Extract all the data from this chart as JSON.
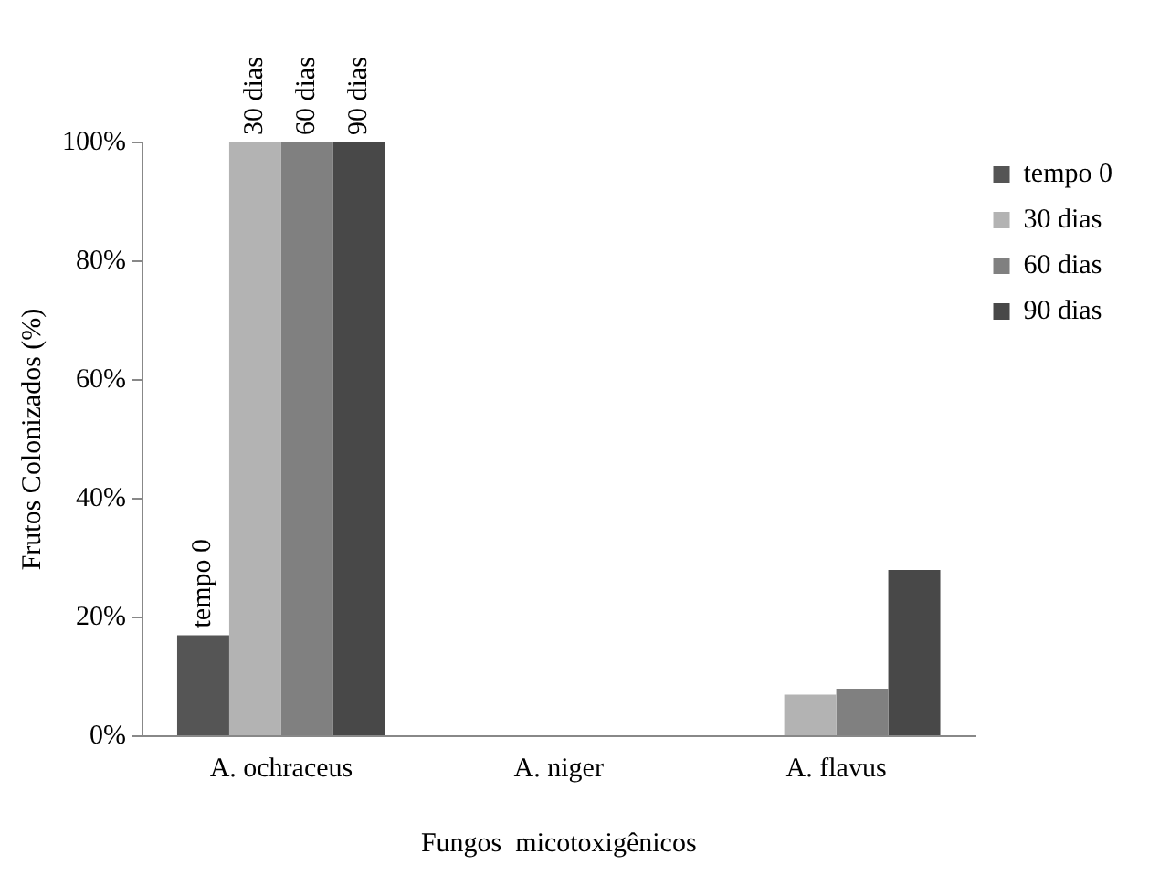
{
  "chart_data": {
    "type": "bar",
    "xlabel": "Fungos  micotoxigênicos",
    "ylabel": "Frutos Colonizados (%)",
    "categories": [
      "A. ochraceus",
      "A. niger",
      "A. flavus"
    ],
    "series": [
      {
        "name": "tempo 0",
        "color": "#555555",
        "values": [
          17,
          0,
          0
        ]
      },
      {
        "name": "30 dias",
        "color": "#b3b3b3",
        "values": [
          100,
          0,
          7
        ]
      },
      {
        "name": "60 dias",
        "color": "#808080",
        "values": [
          100,
          0,
          8
        ]
      },
      {
        "name": "90 dias",
        "color": "#484848",
        "values": [
          100,
          0,
          28
        ]
      }
    ],
    "ylim": [
      0,
      100
    ],
    "yticks": [
      {
        "value": 0,
        "label": "0%"
      },
      {
        "value": 20,
        "label": "20%"
      },
      {
        "value": 40,
        "label": "40%"
      },
      {
        "value": 60,
        "label": "60%"
      },
      {
        "value": 80,
        "label": "80%"
      },
      {
        "value": 100,
        "label": "100%"
      }
    ],
    "annotations": [
      {
        "text": "tempo 0",
        "x": "A. ochraceus",
        "y": 17
      },
      {
        "text": "30 dias",
        "x": "A. ochraceus",
        "y": 100
      },
      {
        "text": "60 dias",
        "x": "A. ochraceus",
        "y": 100
      },
      {
        "text": "90 dias",
        "x": "A. ochraceus",
        "y": 100
      }
    ],
    "grid": false,
    "legend": "top right"
  }
}
